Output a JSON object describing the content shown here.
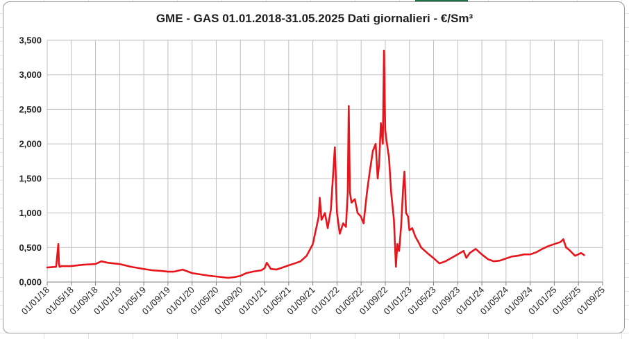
{
  "chart_data": {
    "type": "line",
    "title": "GME - GAS 01.01.2018-31.05.2025 Dati giornalieri - €/Sm³",
    "xlabel": "",
    "ylabel": "",
    "x_range": [
      "2018-01-01",
      "2025-09-01"
    ],
    "ylim": [
      0,
      3.5
    ],
    "y_ticks": [
      0,
      0.5,
      1,
      1.5,
      2,
      2.5,
      3,
      3.5
    ],
    "y_tick_labels": [
      "0,000",
      "0,500",
      "1,000",
      "1,500",
      "2,000",
      "2,500",
      "3,000",
      "3,500"
    ],
    "x_tick_labels": [
      "01/01/18",
      "01/05/18",
      "01/09/18",
      "01/01/19",
      "01/05/19",
      "01/09/19",
      "01/01/20",
      "01/05/20",
      "01/09/20",
      "01/01/21",
      "01/05/21",
      "01/09/21",
      "01/01/22",
      "01/05/22",
      "01/09/22",
      "01/01/23",
      "01/05/23",
      "01/09/23",
      "01/01/24",
      "01/05/24",
      "01/09/24",
      "01/01/25",
      "01/05/25",
      "01/09/25"
    ],
    "grid": true,
    "legend": "none",
    "series": [
      {
        "color": "#e8141b",
        "x": [
          "2018-01-01",
          "2018-02-15",
          "2018-02-26",
          "2018-03-01",
          "2018-03-04",
          "2018-03-15",
          "2018-05-01",
          "2018-07-01",
          "2018-09-01",
          "2018-10-01",
          "2018-11-01",
          "2018-12-01",
          "2019-01-01",
          "2019-03-01",
          "2019-05-01",
          "2019-06-15",
          "2019-08-01",
          "2019-09-01",
          "2019-10-01",
          "2019-11-15",
          "2020-01-01",
          "2020-02-15",
          "2020-04-01",
          "2020-05-01",
          "2020-06-01",
          "2020-07-01",
          "2020-08-01",
          "2020-09-01",
          "2020-10-01",
          "2020-11-01",
          "2020-12-15",
          "2021-01-01",
          "2021-01-12",
          "2021-02-01",
          "2021-03-01",
          "2021-04-01",
          "2021-05-01",
          "2021-06-01",
          "2021-07-01",
          "2021-08-01",
          "2021-09-01",
          "2021-10-01",
          "2021-10-06",
          "2021-10-15",
          "2021-11-01",
          "2021-11-15",
          "2021-12-01",
          "2021-12-21",
          "2022-01-01",
          "2022-01-15",
          "2022-02-01",
          "2022-02-15",
          "2022-02-24",
          "2022-03-01",
          "2022-03-07",
          "2022-03-15",
          "2022-04-01",
          "2022-04-15",
          "2022-05-01",
          "2022-05-15",
          "2022-06-01",
          "2022-06-15",
          "2022-07-01",
          "2022-07-15",
          "2022-07-25",
          "2022-08-01",
          "2022-08-10",
          "2022-08-20",
          "2022-08-26",
          "2022-09-01",
          "2022-09-10",
          "2022-09-20",
          "2022-10-01",
          "2022-10-15",
          "2022-10-25",
          "2022-11-01",
          "2022-11-10",
          "2022-11-20",
          "2022-12-01",
          "2022-12-07",
          "2022-12-15",
          "2022-12-25",
          "2023-01-01",
          "2023-01-15",
          "2023-02-01",
          "2023-02-15",
          "2023-03-01",
          "2023-04-01",
          "2023-05-01",
          "2023-06-01",
          "2023-07-01",
          "2023-08-01",
          "2023-09-01",
          "2023-10-01",
          "2023-10-15",
          "2023-11-01",
          "2023-12-01",
          "2024-01-01",
          "2024-02-01",
          "2024-03-01",
          "2024-04-01",
          "2024-05-01",
          "2024-06-01",
          "2024-07-01",
          "2024-08-01",
          "2024-09-01",
          "2024-10-01",
          "2024-11-01",
          "2024-12-01",
          "2025-01-01",
          "2025-02-01",
          "2025-02-15",
          "2025-03-01",
          "2025-03-15",
          "2025-04-01",
          "2025-04-15",
          "2025-05-01",
          "2025-05-15",
          "2025-05-31"
        ],
        "values": [
          0.21,
          0.22,
          0.55,
          0.28,
          0.22,
          0.23,
          0.23,
          0.25,
          0.26,
          0.3,
          0.28,
          0.27,
          0.26,
          0.22,
          0.19,
          0.17,
          0.16,
          0.15,
          0.15,
          0.18,
          0.13,
          0.11,
          0.09,
          0.08,
          0.07,
          0.06,
          0.07,
          0.09,
          0.13,
          0.15,
          0.17,
          0.2,
          0.28,
          0.19,
          0.18,
          0.21,
          0.24,
          0.27,
          0.3,
          0.38,
          0.55,
          0.95,
          1.22,
          0.9,
          1.0,
          0.78,
          1.05,
          1.95,
          1.0,
          0.7,
          0.85,
          0.8,
          1.3,
          2.55,
          1.3,
          1.15,
          1.2,
          1.0,
          0.95,
          0.85,
          1.3,
          1.6,
          1.9,
          2.0,
          1.5,
          1.7,
          2.3,
          2.0,
          3.35,
          2.2,
          2.0,
          1.8,
          1.3,
          0.9,
          0.22,
          0.55,
          0.45,
          0.8,
          1.4,
          1.6,
          1.0,
          0.95,
          0.75,
          0.78,
          0.65,
          0.58,
          0.5,
          0.42,
          0.35,
          0.27,
          0.3,
          0.35,
          0.4,
          0.45,
          0.35,
          0.42,
          0.48,
          0.4,
          0.33,
          0.3,
          0.31,
          0.34,
          0.37,
          0.38,
          0.4,
          0.4,
          0.43,
          0.48,
          0.52,
          0.55,
          0.58,
          0.62,
          0.5,
          0.47,
          0.42,
          0.38,
          0.4,
          0.42,
          0.39
        ]
      }
    ]
  }
}
